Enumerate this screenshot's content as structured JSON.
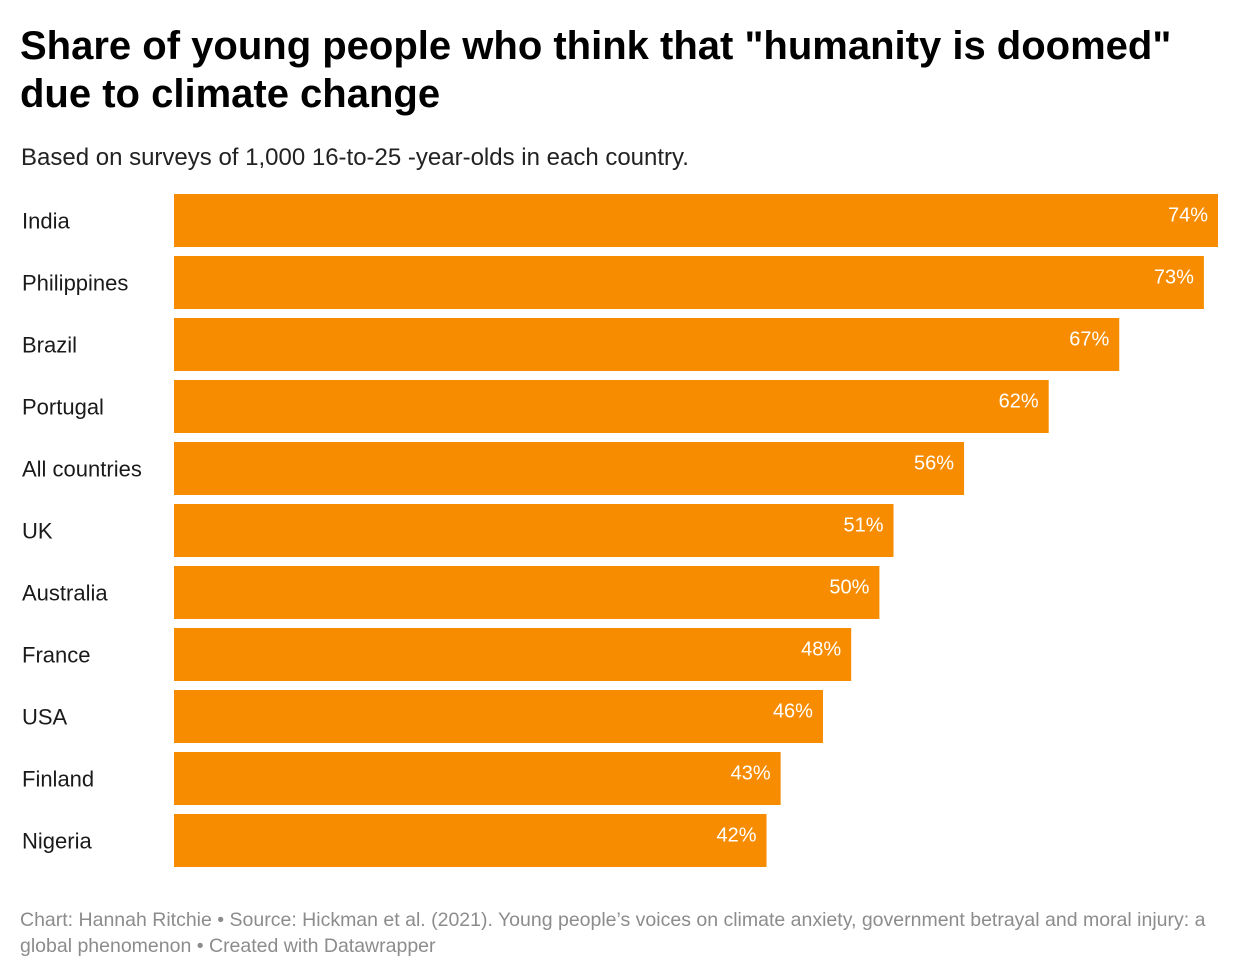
{
  "title": "Share of young people who think that \"humanity is doomed\" due to climate change",
  "subtitle": "Based on surveys of 1,000 16-to-25 -year-olds in each country.",
  "footer": {
    "chart_credit": "Chart: Hannah Ritchie",
    "separator": " • ",
    "source": "Source: Hickman et al. (2021). Young people’s voices on climate anxiety, government betrayal and moral injury: a global phenomenon",
    "created_with": "Created with Datawrapper"
  },
  "colors": {
    "bar": "#f78c00",
    "value_label": "#ffffff",
    "footer_text": "#8c8c8c"
  },
  "chart_data": {
    "type": "bar",
    "orientation": "horizontal",
    "categories": [
      "India",
      "Philippines",
      "Brazil",
      "Portugal",
      "All countries",
      "UK",
      "Australia",
      "France",
      "USA",
      "Finland",
      "Nigeria"
    ],
    "values": [
      74,
      73,
      67,
      62,
      56,
      51,
      50,
      48,
      46,
      43,
      42
    ],
    "value_labels": [
      "74%",
      "73%",
      "67%",
      "62%",
      "56%",
      "51%",
      "50%",
      "48%",
      "46%",
      "43%",
      "42%"
    ],
    "unit": "%",
    "xlim": [
      0,
      74
    ],
    "grid": false,
    "legend": "none"
  }
}
